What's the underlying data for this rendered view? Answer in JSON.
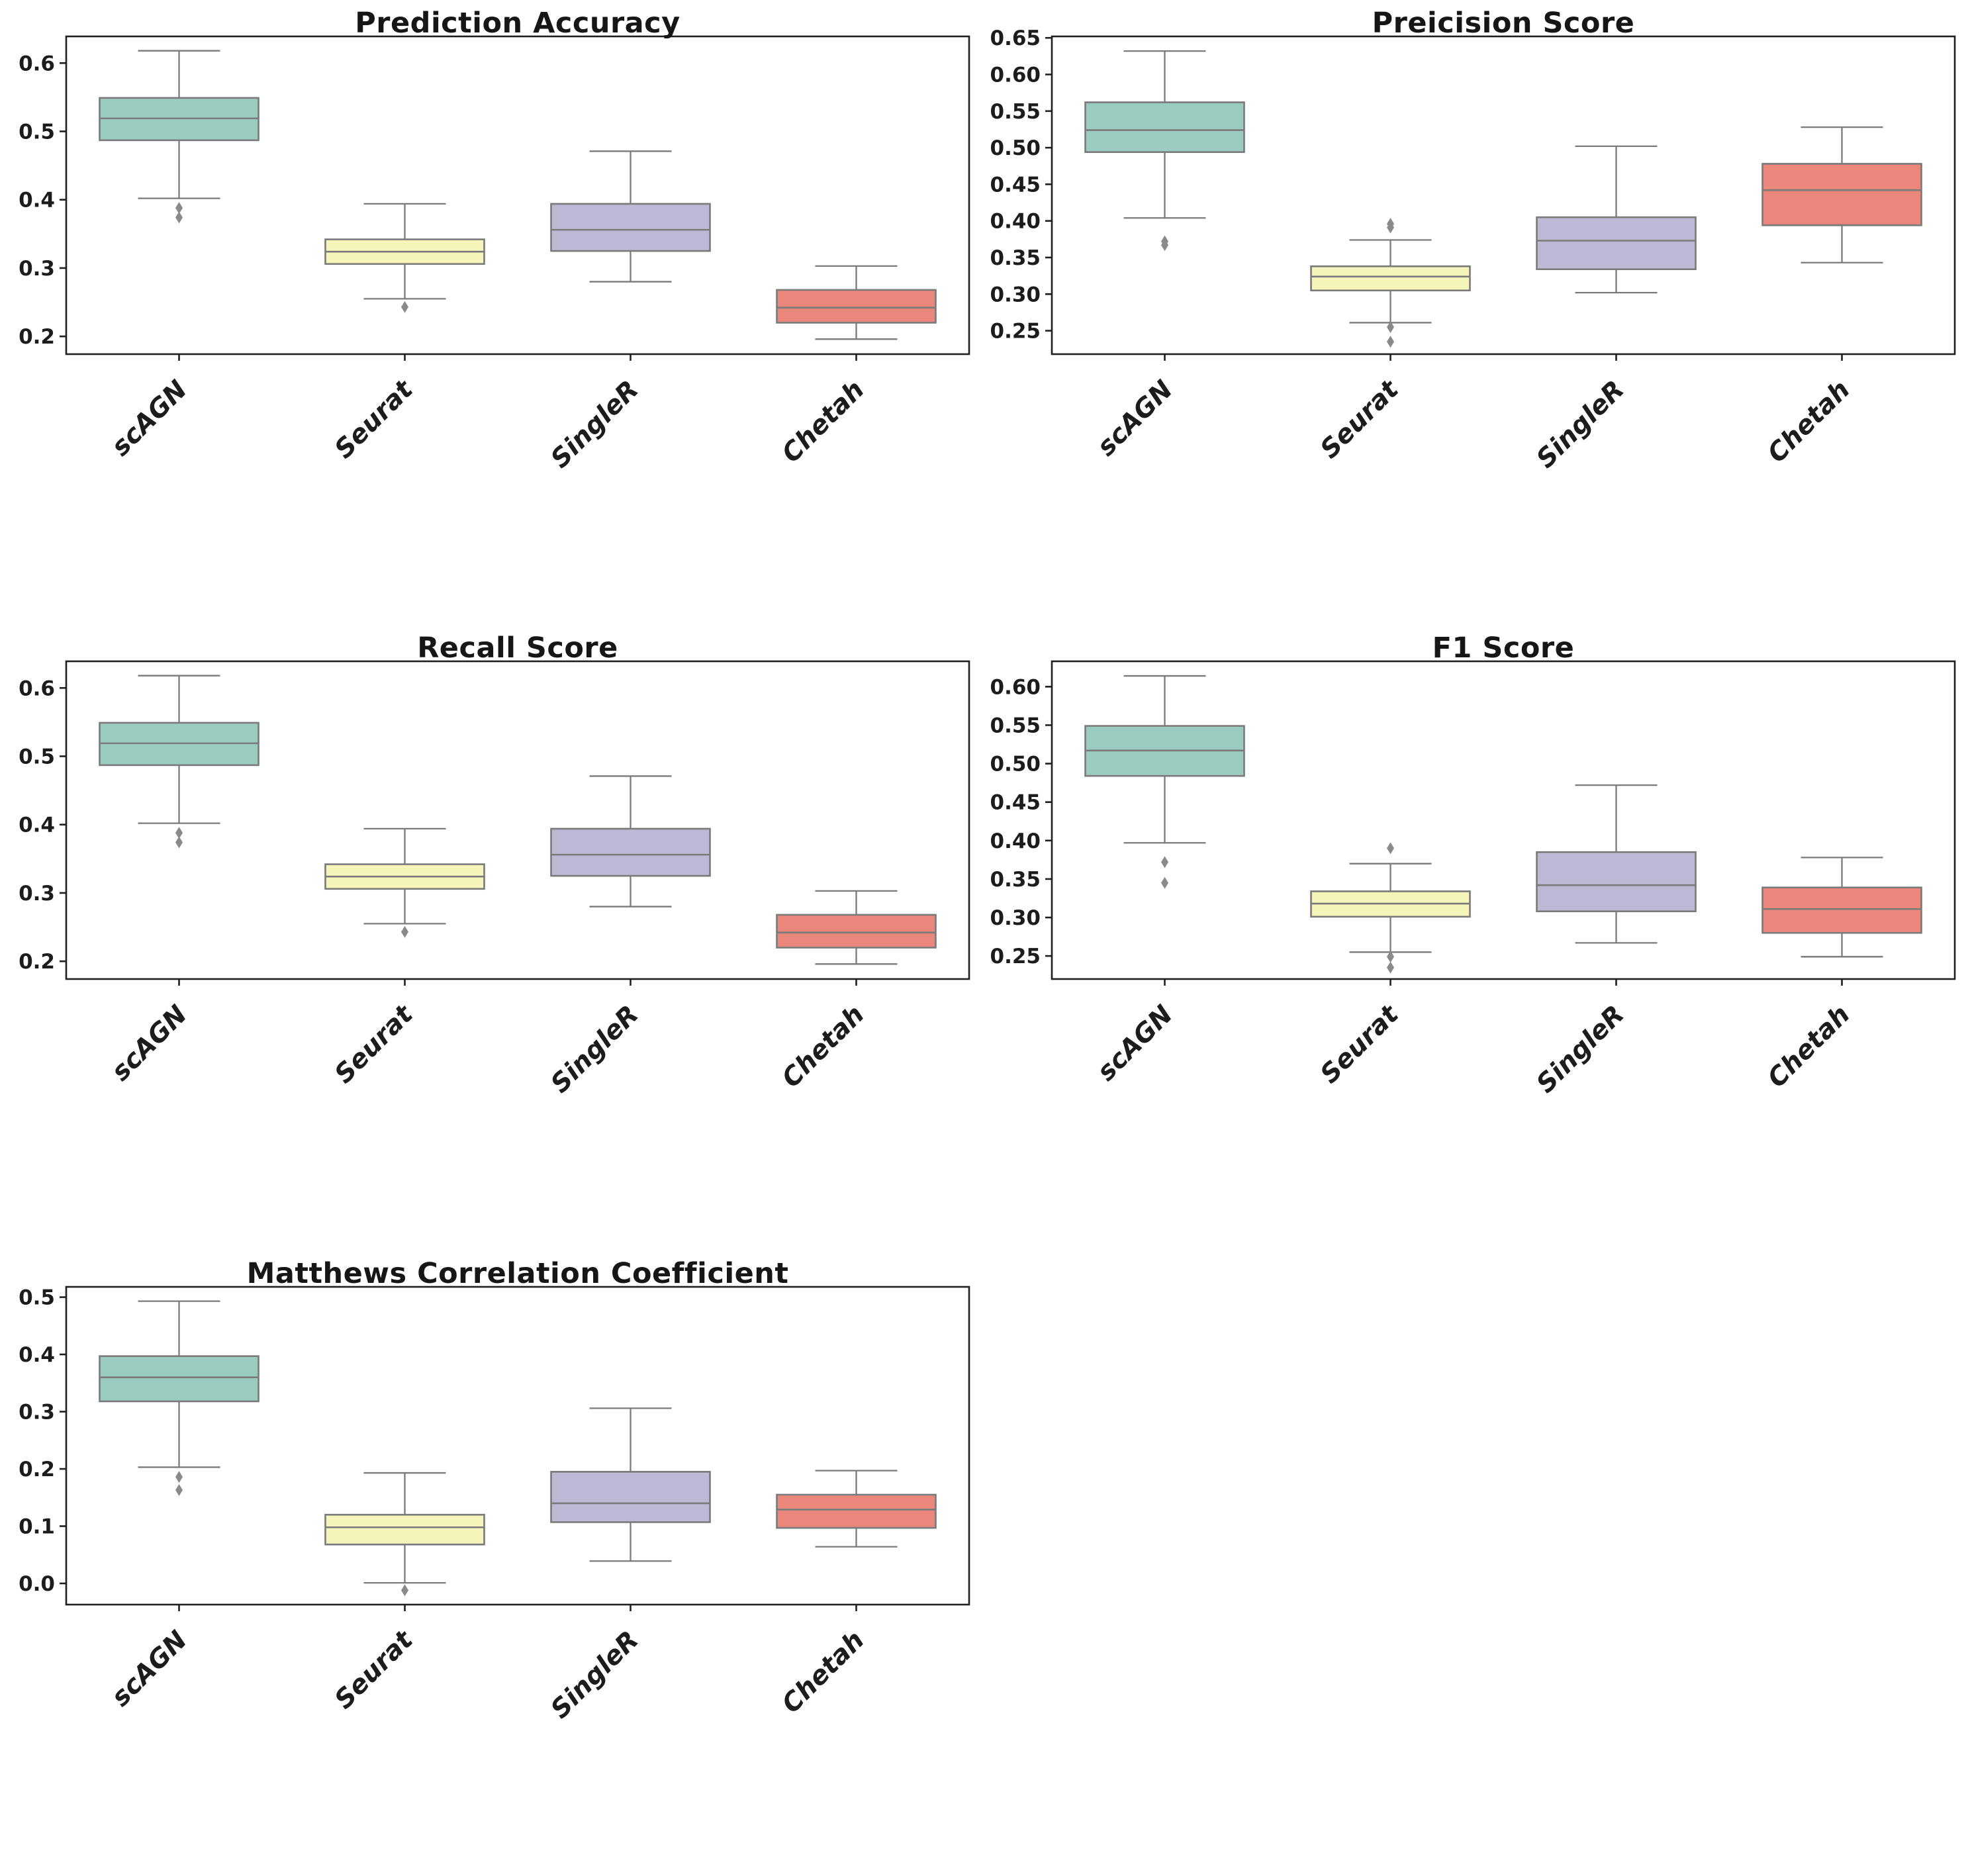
{
  "figure": {
    "background": "#ffffff",
    "categories": [
      "scAGN",
      "Seurat",
      "SingleR",
      "Chetah"
    ],
    "palette": [
      "#9ACBC1",
      "#F4F4BB",
      "#BCB9D5",
      "#EB877A"
    ],
    "box_line_color": "#7A7A7A",
    "flier_color": "#8A8A8A",
    "spine_color": "#1F1F1F",
    "text_color": "#1C1C1C"
  },
  "chart_data": [
    {
      "type": "boxplot",
      "title": "Prediction Accuracy",
      "categories": [
        "scAGN",
        "Seurat",
        "SingleR",
        "Chetah"
      ],
      "ylim": [
        0.174,
        0.639
      ],
      "grid": false,
      "legend": "none",
      "yticks": [
        {
          "value": 0.2,
          "label": "0.2"
        },
        {
          "value": 0.3,
          "label": "0.3"
        },
        {
          "value": 0.4,
          "label": "0.4"
        },
        {
          "value": 0.5,
          "label": "0.5"
        },
        {
          "value": 0.6,
          "label": "0.6"
        }
      ],
      "series": [
        {
          "name": "scAGN",
          "whislo": 0.402,
          "q1": 0.487,
          "med": 0.519,
          "q3": 0.549,
          "whishi": 0.618,
          "fliers": [
            0.388,
            0.374
          ]
        },
        {
          "name": "Seurat",
          "whislo": 0.255,
          "q1": 0.306,
          "med": 0.324,
          "q3": 0.342,
          "whishi": 0.394,
          "fliers": [
            0.243
          ]
        },
        {
          "name": "SingleR",
          "whislo": 0.28,
          "q1": 0.325,
          "med": 0.356,
          "q3": 0.394,
          "whishi": 0.471,
          "fliers": []
        },
        {
          "name": "Chetah",
          "whislo": 0.196,
          "q1": 0.22,
          "med": 0.242,
          "q3": 0.268,
          "whishi": 0.303,
          "fliers": []
        }
      ]
    },
    {
      "type": "boxplot",
      "title": "Preicision Score",
      "categories": [
        "scAGN",
        "Seurat",
        "SingleR",
        "Chetah"
      ],
      "ylim": [
        0.218,
        0.652
      ],
      "grid": false,
      "legend": "none",
      "yticks": [
        {
          "value": 0.25,
          "label": "0.25"
        },
        {
          "value": 0.3,
          "label": "0.30"
        },
        {
          "value": 0.35,
          "label": "0.35"
        },
        {
          "value": 0.4,
          "label": "0.40"
        },
        {
          "value": 0.45,
          "label": "0.45"
        },
        {
          "value": 0.5,
          "label": "0.50"
        },
        {
          "value": 0.55,
          "label": "0.55"
        },
        {
          "value": 0.6,
          "label": "0.60"
        },
        {
          "value": 0.65,
          "label": "0.65"
        }
      ],
      "series": [
        {
          "name": "scAGN",
          "whislo": 0.404,
          "q1": 0.494,
          "med": 0.524,
          "q3": 0.562,
          "whishi": 0.632,
          "fliers": [
            0.372,
            0.367
          ]
        },
        {
          "name": "Seurat",
          "whislo": 0.261,
          "q1": 0.305,
          "med": 0.324,
          "q3": 0.338,
          "whishi": 0.374,
          "fliers": [
            0.396,
            0.391,
            0.255,
            0.235
          ]
        },
        {
          "name": "SingleR",
          "whislo": 0.302,
          "q1": 0.334,
          "med": 0.373,
          "q3": 0.405,
          "whishi": 0.502,
          "fliers": []
        },
        {
          "name": "Chetah",
          "whislo": 0.343,
          "q1": 0.394,
          "med": 0.442,
          "q3": 0.478,
          "whishi": 0.528,
          "fliers": []
        }
      ]
    },
    {
      "type": "boxplot",
      "title": "Recall Score",
      "categories": [
        "scAGN",
        "Seurat",
        "SingleR",
        "Chetah"
      ],
      "ylim": [
        0.174,
        0.639
      ],
      "grid": false,
      "legend": "none",
      "yticks": [
        {
          "value": 0.2,
          "label": "0.2"
        },
        {
          "value": 0.3,
          "label": "0.3"
        },
        {
          "value": 0.4,
          "label": "0.4"
        },
        {
          "value": 0.5,
          "label": "0.5"
        },
        {
          "value": 0.6,
          "label": "0.6"
        }
      ],
      "series": [
        {
          "name": "scAGN",
          "whislo": 0.402,
          "q1": 0.487,
          "med": 0.519,
          "q3": 0.549,
          "whishi": 0.618,
          "fliers": [
            0.388,
            0.374
          ]
        },
        {
          "name": "Seurat",
          "whislo": 0.255,
          "q1": 0.306,
          "med": 0.324,
          "q3": 0.342,
          "whishi": 0.394,
          "fliers": [
            0.243
          ]
        },
        {
          "name": "SingleR",
          "whislo": 0.28,
          "q1": 0.325,
          "med": 0.356,
          "q3": 0.394,
          "whishi": 0.471,
          "fliers": []
        },
        {
          "name": "Chetah",
          "whislo": 0.196,
          "q1": 0.22,
          "med": 0.242,
          "q3": 0.268,
          "whishi": 0.303,
          "fliers": []
        }
      ]
    },
    {
      "type": "boxplot",
      "title": "F1 Score",
      "categories": [
        "scAGN",
        "Seurat",
        "SingleR",
        "Chetah"
      ],
      "ylim": [
        0.22,
        0.633
      ],
      "grid": false,
      "legend": "none",
      "yticks": [
        {
          "value": 0.25,
          "label": "0.25"
        },
        {
          "value": 0.3,
          "label": "0.30"
        },
        {
          "value": 0.35,
          "label": "0.35"
        },
        {
          "value": 0.4,
          "label": "0.40"
        },
        {
          "value": 0.45,
          "label": "0.45"
        },
        {
          "value": 0.5,
          "label": "0.50"
        },
        {
          "value": 0.55,
          "label": "0.55"
        },
        {
          "value": 0.6,
          "label": "0.60"
        }
      ],
      "series": [
        {
          "name": "scAGN",
          "whislo": 0.397,
          "q1": 0.484,
          "med": 0.517,
          "q3": 0.549,
          "whishi": 0.614,
          "fliers": [
            0.372,
            0.345
          ]
        },
        {
          "name": "Seurat",
          "whislo": 0.255,
          "q1": 0.301,
          "med": 0.318,
          "q3": 0.334,
          "whishi": 0.37,
          "fliers": [
            0.39,
            0.249,
            0.235
          ]
        },
        {
          "name": "SingleR",
          "whislo": 0.267,
          "q1": 0.308,
          "med": 0.342,
          "q3": 0.385,
          "whishi": 0.472,
          "fliers": []
        },
        {
          "name": "Chetah",
          "whislo": 0.249,
          "q1": 0.28,
          "med": 0.311,
          "q3": 0.339,
          "whishi": 0.378,
          "fliers": []
        }
      ]
    },
    {
      "type": "boxplot",
      "title": "Matthews Correlation Coefficient",
      "categories": [
        "scAGN",
        "Seurat",
        "SingleR",
        "Chetah"
      ],
      "ylim": [
        -0.037,
        0.518
      ],
      "grid": false,
      "legend": "none",
      "yticks": [
        {
          "value": 0.0,
          "label": "0.0"
        },
        {
          "value": 0.1,
          "label": "0.1"
        },
        {
          "value": 0.2,
          "label": "0.2"
        },
        {
          "value": 0.3,
          "label": "0.3"
        },
        {
          "value": 0.4,
          "label": "0.4"
        },
        {
          "value": 0.5,
          "label": "0.5"
        }
      ],
      "series": [
        {
          "name": "scAGN",
          "whislo": 0.203,
          "q1": 0.318,
          "med": 0.36,
          "q3": 0.397,
          "whishi": 0.493,
          "fliers": [
            0.186,
            0.163
          ]
        },
        {
          "name": "Seurat",
          "whislo": 0.001,
          "q1": 0.068,
          "med": 0.098,
          "q3": 0.12,
          "whishi": 0.193,
          "fliers": [
            -0.012
          ]
        },
        {
          "name": "SingleR",
          "whislo": 0.039,
          "q1": 0.107,
          "med": 0.14,
          "q3": 0.195,
          "whishi": 0.306,
          "fliers": []
        },
        {
          "name": "Chetah",
          "whislo": 0.064,
          "q1": 0.097,
          "med": 0.129,
          "q3": 0.155,
          "whishi": 0.197,
          "fliers": []
        }
      ]
    }
  ]
}
